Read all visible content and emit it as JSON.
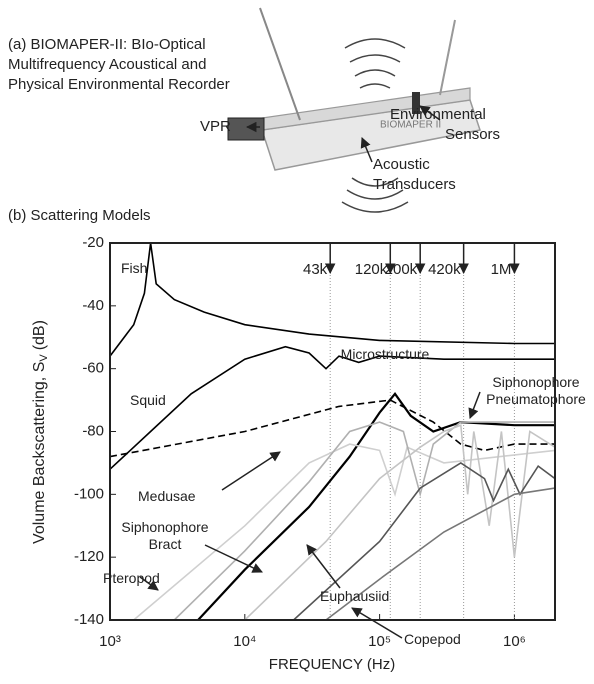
{
  "illustration": {
    "caption": [
      "(a) BIOMAPER-II: BIo-Optical",
      "Multifrequency Acoustical and",
      "Physical Environmental Recorder"
    ],
    "vehicle": "BIOMAPER II",
    "vpr": "VPR",
    "sensors": [
      "Environmental",
      "Sensors"
    ],
    "transducers": [
      "Acoustic",
      "Transducers"
    ]
  },
  "chart_data": {
    "type": "line",
    "title": "(b) Scattering Models",
    "x_label": "FREQUENCY (Hz)",
    "y_label": [
      "Volume Backscattering, S",
      "V",
      "(dB)"
    ],
    "log_x": true,
    "xlim": [
      1000,
      2000000
    ],
    "ylim": [
      -140,
      -20
    ],
    "xticks": [
      {
        "value": 1000,
        "label": "10³"
      },
      {
        "value": 10000,
        "label": "10⁴"
      },
      {
        "value": 100000,
        "label": "10⁵"
      },
      {
        "value": 1000000,
        "label": "10⁶"
      }
    ],
    "yticks": [
      -20,
      -40,
      -60,
      -80,
      -100,
      -120,
      -140
    ],
    "markers": [
      {
        "value": 43000,
        "label": "43k"
      },
      {
        "value": 120000,
        "label": "120k"
      },
      {
        "value": 200000,
        "label": "200k"
      },
      {
        "value": 420000,
        "label": "420k"
      },
      {
        "value": 1000000,
        "label": "1M"
      }
    ],
    "series": [
      {
        "name": "Fish",
        "color": "#000000",
        "x": [
          1000,
          1500,
          1800,
          2000,
          2200,
          3000,
          5000,
          10000,
          30000,
          100000,
          1000000,
          2000000
        ],
        "values": [
          -56,
          -46,
          -36,
          -20,
          -33,
          -38,
          -42,
          -46,
          -49,
          -51,
          -52,
          -52
        ]
      },
      {
        "name": "Squid",
        "color": "#000000",
        "x": [
          1000,
          2000,
          4000,
          10000,
          20000,
          30000,
          40000,
          50000,
          70000,
          100000,
          300000,
          2000000
        ],
        "values": [
          -92,
          -80,
          -68,
          -57,
          -53,
          -55,
          -60,
          -56,
          -58,
          -56,
          -57,
          -57
        ]
      },
      {
        "name": "Microstructure",
        "color": "#000000",
        "dashed": true,
        "x": [
          1000,
          10000,
          50000,
          120000,
          250000,
          400000,
          600000,
          1000000,
          2000000
        ],
        "values": [
          -88,
          -80,
          -72,
          -70,
          -77,
          -84,
          -86,
          -84,
          -84
        ]
      },
      {
        "name": "Siphonophore Pneumatophore",
        "color": "#000000",
        "width": 2.2,
        "x": [
          4500,
          10000,
          30000,
          60000,
          100000,
          130000,
          170000,
          250000,
          400000,
          1000000,
          2000000
        ],
        "values": [
          -140,
          -124,
          -104,
          -88,
          -74,
          -68,
          -75,
          -80,
          -77,
          -78,
          -78
        ]
      },
      {
        "name": "Medusae",
        "color": "#cfcfcf",
        "x": [
          1500,
          10000,
          30000,
          60000,
          100000,
          130000,
          160000,
          300000,
          2000000
        ],
        "values": [
          -140,
          -110,
          -90,
          -84,
          -86,
          -100,
          -85,
          -90,
          -86
        ]
      },
      {
        "name": "Siphonophore Bract",
        "color": "#b0b0b0",
        "x": [
          3000,
          10000,
          30000,
          60000,
          100000,
          150000,
          200000,
          250000,
          400000,
          700000,
          2000000
        ],
        "values": [
          -140,
          -118,
          -96,
          -80,
          -77,
          -80,
          -100,
          -84,
          -77,
          -77,
          -77
        ]
      },
      {
        "name": "Pteropod",
        "color": "#c4c4c4",
        "x": [
          10000,
          40000,
          100000,
          200000,
          300000,
          400000,
          450000,
          500000,
          650000,
          800000,
          1000000,
          1300000,
          2000000
        ],
        "values": [
          -140,
          -115,
          -95,
          -85,
          -80,
          -78,
          -100,
          -80,
          -110,
          -80,
          -120,
          -80,
          -85
        ]
      },
      {
        "name": "Euphausiid",
        "color": "#555555",
        "x": [
          23000,
          100000,
          200000,
          400000,
          600000,
          700000,
          900000,
          1100000,
          1500000,
          2000000
        ],
        "values": [
          -140,
          -115,
          -98,
          -90,
          -95,
          -102,
          -92,
          -100,
          -91,
          -95
        ]
      },
      {
        "name": "Copepod",
        "color": "#777777",
        "x": [
          40000,
          100000,
          300000,
          1000000,
          2000000
        ],
        "values": [
          -140,
          -127,
          -112,
          -100,
          -98
        ]
      }
    ]
  }
}
